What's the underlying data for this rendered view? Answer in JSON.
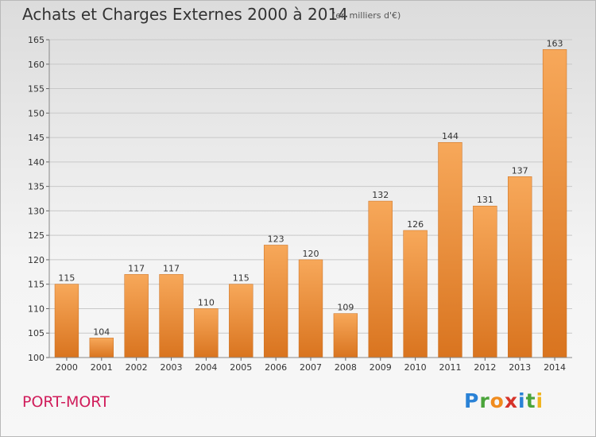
{
  "title": "Achats et Charges Externes 2000 à 2014",
  "units": "(en milliers d'€)",
  "commune": "PORT-MORT",
  "logo": "Proxiti",
  "colors": {
    "bar_light": "#f7a85a",
    "bar_dark": "#d9741f",
    "grid": "#c8c8c8",
    "commune": "#d01c5a"
  },
  "chart_data": {
    "type": "bar",
    "title": "Achats et Charges Externes 2000 à 2014",
    "subtitle": "(en milliers d'€)",
    "xlabel": "",
    "ylabel": "",
    "categories": [
      "2000",
      "2001",
      "2002",
      "2003",
      "2004",
      "2005",
      "2006",
      "2007",
      "2008",
      "2009",
      "2010",
      "2011",
      "2012",
      "2013",
      "2014"
    ],
    "values": [
      115,
      104,
      117,
      117,
      110,
      115,
      123,
      120,
      109,
      132,
      126,
      144,
      131,
      137,
      163
    ],
    "data_labels": [
      "115",
      "104",
      "117",
      "117",
      "110",
      "115",
      "123",
      "120",
      "109",
      "132",
      "126",
      "144",
      "131",
      "137",
      "163"
    ],
    "ylim": [
      100,
      165
    ],
    "yticks": [
      100,
      105,
      110,
      115,
      120,
      125,
      130,
      135,
      140,
      145,
      150,
      155,
      160,
      165
    ],
    "grid": true,
    "legend": "none"
  }
}
